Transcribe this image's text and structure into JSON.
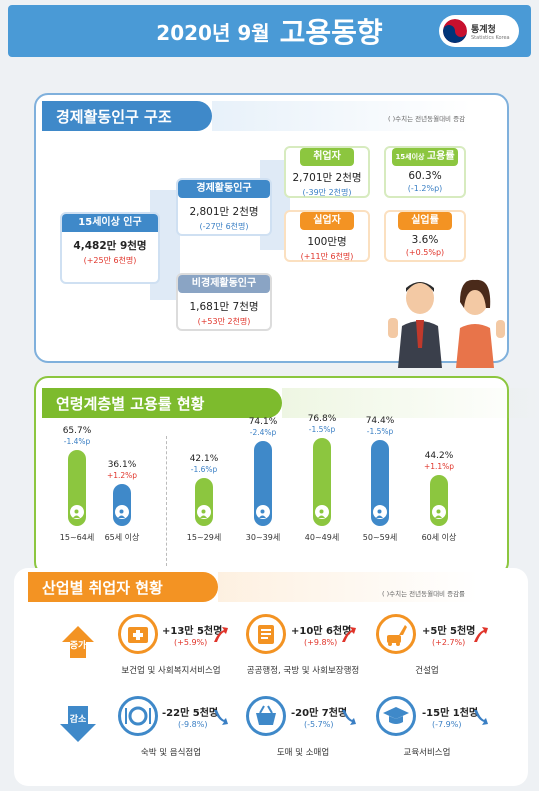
{
  "header": {
    "year_month": "2020년  9월",
    "main": "고용동향",
    "logo_kr": "통계청",
    "logo_en": "Statistics Korea"
  },
  "sec1": {
    "title": "경제활동인구 구조",
    "note": "(   )수치는 전년동월대비 증감",
    "pop15": {
      "label": "15세이상 인구",
      "value": "4,482만 9천명",
      "change": "(+25만 6천명)"
    },
    "econ": {
      "label": "경제활동인구",
      "value": "2,801만 2천명",
      "change": "(-27만 6천명)"
    },
    "nonecon": {
      "label": "비경제활동인구",
      "value": "1,681만 7천명",
      "change": "(+53만 2천명)"
    },
    "employed": {
      "label": "취업자",
      "value": "2,701만 2천명",
      "change": "(-39만 2천명)"
    },
    "unemployed": {
      "label": "실업자",
      "value": "100만명",
      "change": "(+11만 6천명)"
    },
    "emprate": {
      "label_small": "15세이상 ",
      "label_big": "고용률",
      "value": "60.3%",
      "change": "(-1.2%p)"
    },
    "unemprate": {
      "label": "실업률",
      "value": "3.6%",
      "change": "(+0.5%p)"
    }
  },
  "sec2": {
    "title": "연령계층별 고용률 현황"
  },
  "chart_data": {
    "type": "bar",
    "categories": [
      "15~64세",
      "65세 이상",
      "15~29세",
      "30~39세",
      "40~49세",
      "50~59세",
      "60세 이상"
    ],
    "values": [
      65.7,
      36.1,
      42.1,
      74.1,
      76.8,
      74.4,
      44.2
    ],
    "labels": [
      "65.7%",
      "36.1%",
      "42.1%",
      "74.1%",
      "76.8%",
      "74.4%",
      "44.2%"
    ],
    "changes": [
      "-1.4%p",
      "+1.2%p",
      "-1.6%p",
      "-2.4%p",
      "-1.5%p",
      "-1.5%p",
      "+1.1%p"
    ],
    "colors": {
      "green": "#8cc63f",
      "blue": "#3f89c9",
      "up": "#e0342a",
      "down": "#3a7fc4"
    },
    "bar_colors": [
      "green",
      "blue",
      "green",
      "blue",
      "green",
      "blue",
      "green"
    ]
  },
  "sec3": {
    "title": "산업별 취업자 현황",
    "note": "(   )수치는 전년동월대비 증감률",
    "increase_label": "증가",
    "decrease_label": "감소",
    "increase": [
      {
        "value": "+13만 5천명",
        "pct": "(+5.9%)",
        "name": "보건업 및 사회복지서비스업"
      },
      {
        "value": "+10만 6천명",
        "pct": "(+9.8%)",
        "name": "공공행정, 국방 및 사회보장행정"
      },
      {
        "value": "+5만 5천명",
        "pct": "(+2.7%)",
        "name": "건설업"
      }
    ],
    "decrease": [
      {
        "value": "-22만 5천명",
        "pct": "(-9.8%)",
        "name": "숙박 및 음식점업"
      },
      {
        "value": "-20만 7천명",
        "pct": "(-5.7%)",
        "name": "도매 및 소매업"
      },
      {
        "value": "-15만 1천명",
        "pct": "(-7.9%)",
        "name": "교육서비스업"
      }
    ]
  }
}
